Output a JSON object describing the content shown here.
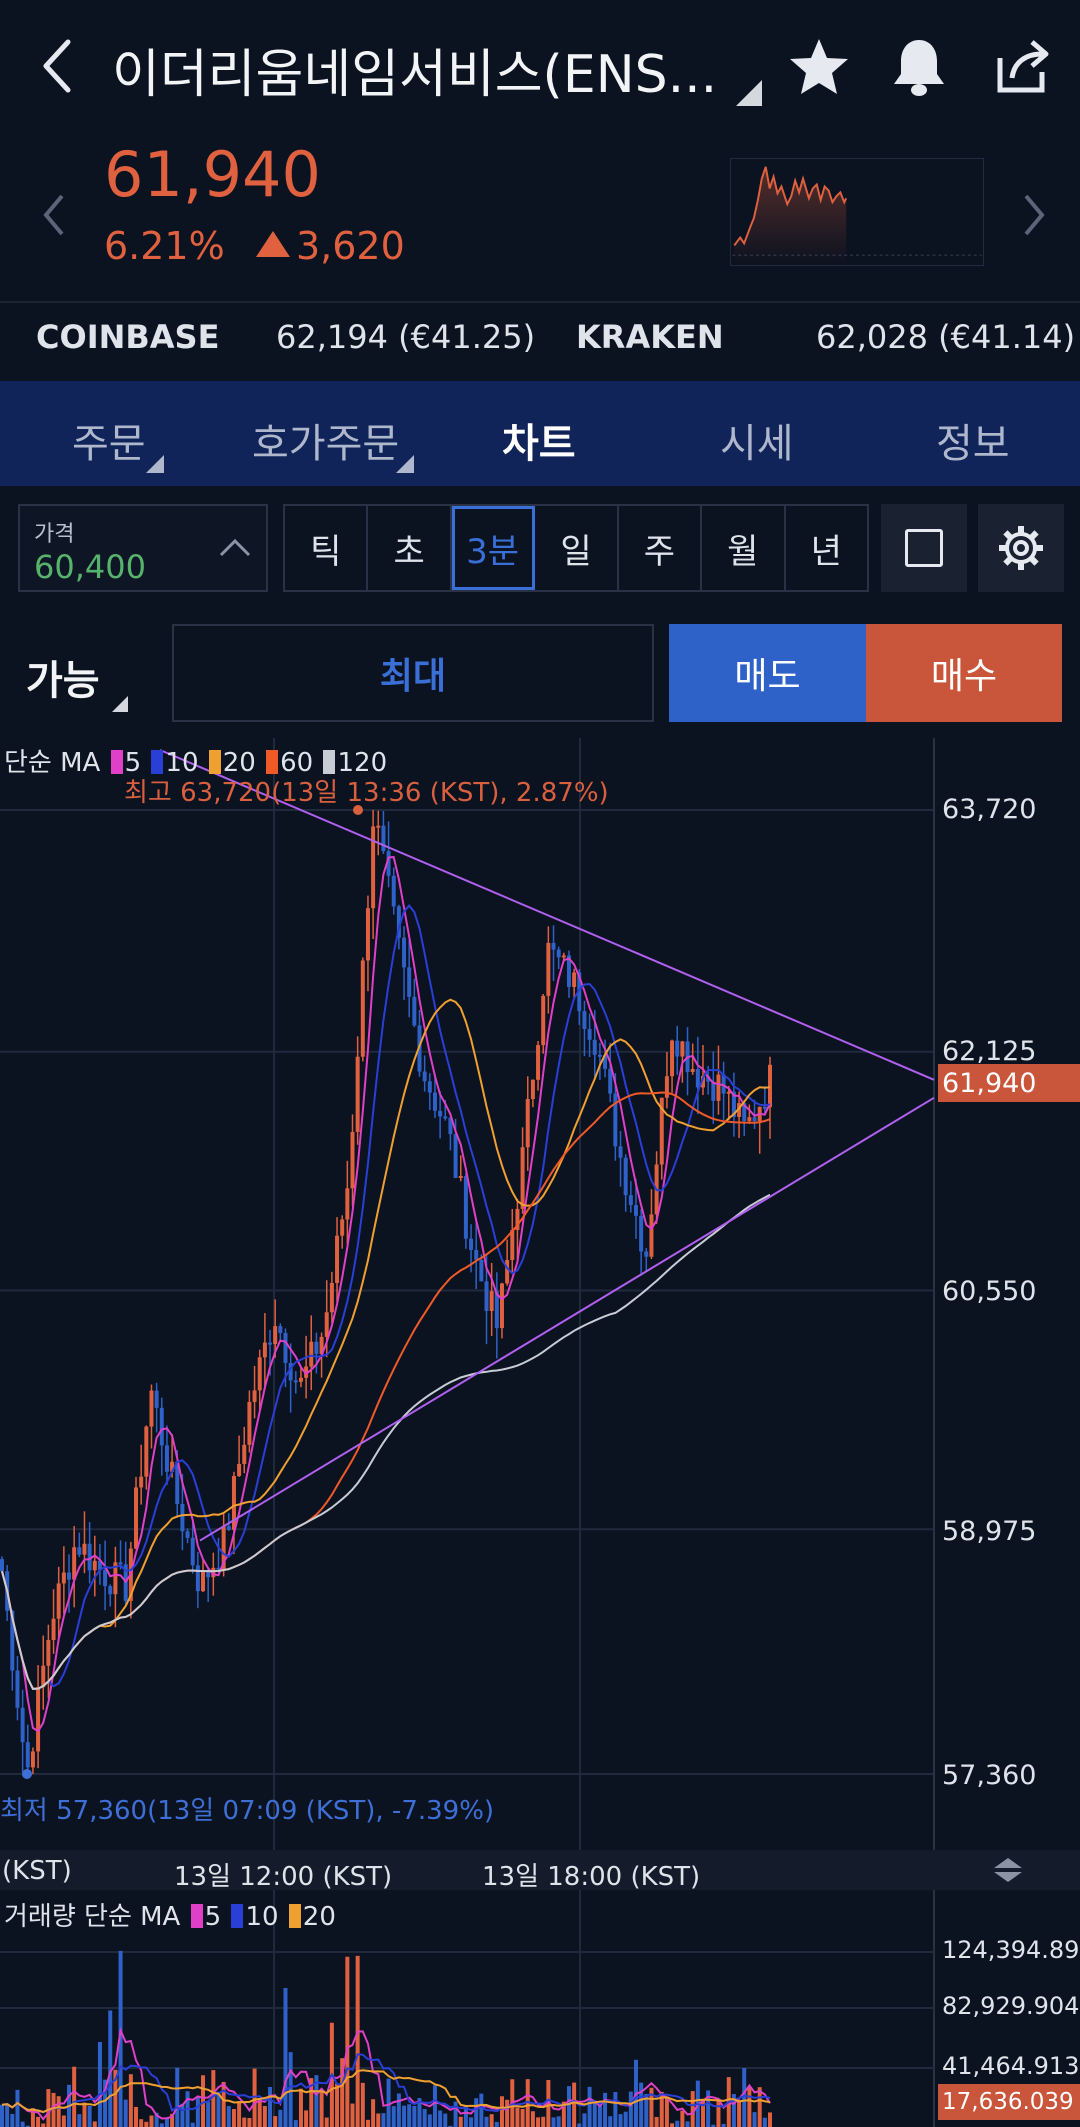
{
  "header": {
    "title": "이더리움네임서비스(ENS...",
    "icons": [
      "back-icon",
      "star-icon",
      "bell-icon",
      "share-icon"
    ]
  },
  "quote": {
    "price": "61,940",
    "change_pct": "6.21%",
    "change_abs": "3,620"
  },
  "exchanges": [
    {
      "name": "COINBASE",
      "value": "62,194 (€41.25)"
    },
    {
      "name": "KRAKEN",
      "value": "62,028 (€41.14)"
    }
  ],
  "tabs": [
    "주문",
    "호가주문",
    "차트",
    "시세",
    "정보"
  ],
  "active_tab": "차트",
  "price_input": {
    "label": "가격",
    "value": "60,400"
  },
  "intervals": [
    "틱",
    "초",
    "3분",
    "일",
    "주",
    "월",
    "년"
  ],
  "active_interval": "3분",
  "order": {
    "available": "가능",
    "max": "최대",
    "sell": "매도",
    "buy": "매수"
  },
  "colors": {
    "up": "#e0613f",
    "down": "#2e62c9",
    "ma5": "#e040c8",
    "ma10": "#2a3fd6",
    "ma20": "#f0a030",
    "ma60": "#f05a28",
    "ma120": "#c8ccd4",
    "trend": "#b060f0"
  },
  "chart_legend": {
    "prefix": "단순 MA",
    "ma": [
      "5",
      "10",
      "20",
      "60",
      "120"
    ]
  },
  "volume_legend": {
    "prefix": "거래량 단순 MA",
    "ma": [
      "5",
      "10",
      "20"
    ]
  },
  "chart_data": {
    "type": "candlestick",
    "y_ticks": [
      "63,720",
      "62,125",
      "60,550",
      "58,975",
      "57,360"
    ],
    "ylim": [
      57360,
      63720
    ],
    "current": "61,940",
    "high_annotation": "최고 63,720(13일 13:36 (KST), 2.87%)",
    "low_annotation": "최저 57,360(13일 07:09 (KST), -7.39%)",
    "x_ticks": [
      "(KST)",
      "13일 12:00 (KST)",
      "13일 18:00 (KST)"
    ],
    "close_path": [
      58700,
      57360,
      58400,
      58900,
      58700,
      58600,
      59900,
      59200,
      58600,
      58900,
      59800,
      60400,
      59900,
      60300,
      61300,
      63720,
      62800,
      62000,
      61600,
      60800,
      60300,
      61400,
      62800,
      62600,
      62200,
      61400,
      60800,
      62300,
      62000,
      61900,
      61600,
      61940
    ],
    "volume_ticks": [
      "124,394.898",
      "82,929.904",
      "41,464.913"
    ],
    "volume_current": "17,636.039"
  }
}
